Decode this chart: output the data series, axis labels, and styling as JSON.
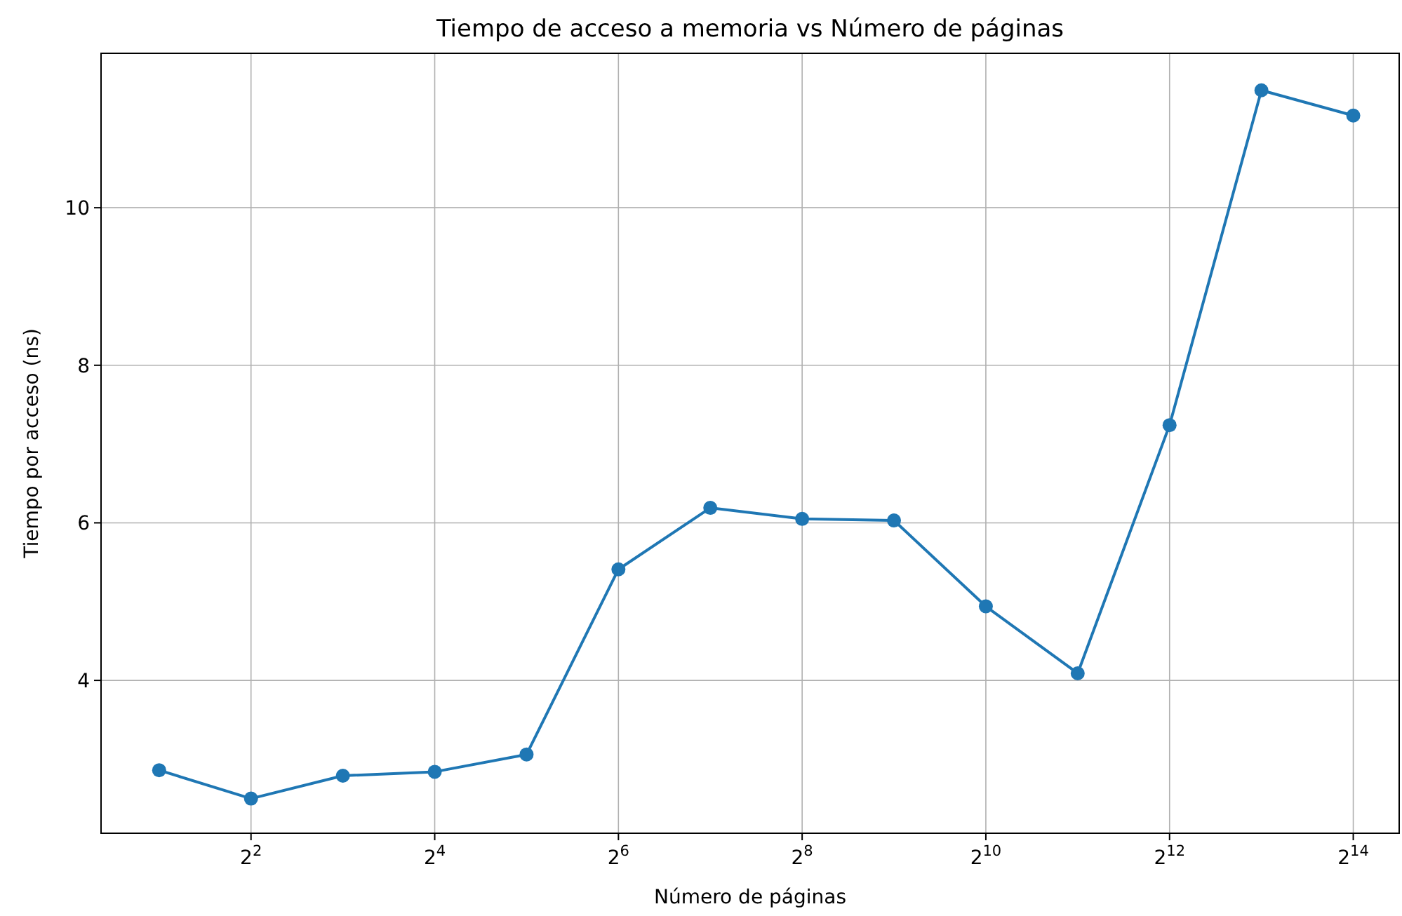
{
  "chart_data": {
    "type": "line",
    "title": "Tiempo de acceso a memoria vs Número de páginas",
    "xlabel": "Número de páginas",
    "ylabel": "Tiempo por acceso (ns)",
    "x": [
      2,
      4,
      8,
      16,
      32,
      64,
      128,
      256,
      512,
      1024,
      2048,
      4096,
      8192,
      16384
    ],
    "series": [
      {
        "color": "#1f77b4",
        "values": [
          2.86,
          2.5,
          2.79,
          2.84,
          3.06,
          5.41,
          6.19,
          6.05,
          6.03,
          4.94,
          4.09,
          7.24,
          11.49,
          11.17
        ]
      }
    ],
    "log": "x",
    "xlim": [
      1.29,
      23170
    ],
    "ylim": [
      2.06,
      11.96
    ],
    "xticks": [
      {
        "value": 4,
        "label": "2$^{2}$"
      },
      {
        "value": 16,
        "label": "2$^{4}$"
      },
      {
        "value": 64,
        "label": "2$^{6}$"
      },
      {
        "value": 256,
        "label": "2$^{8}$"
      },
      {
        "value": 1024,
        "label": "2$^{10}$"
      },
      {
        "value": 4096,
        "label": "2$^{12}$"
      },
      {
        "value": 16384,
        "label": "2$^{14}$"
      }
    ],
    "yticks": [
      4,
      6,
      8,
      10
    ],
    "grid": true,
    "marker": "circle",
    "line_style": "solid"
  }
}
